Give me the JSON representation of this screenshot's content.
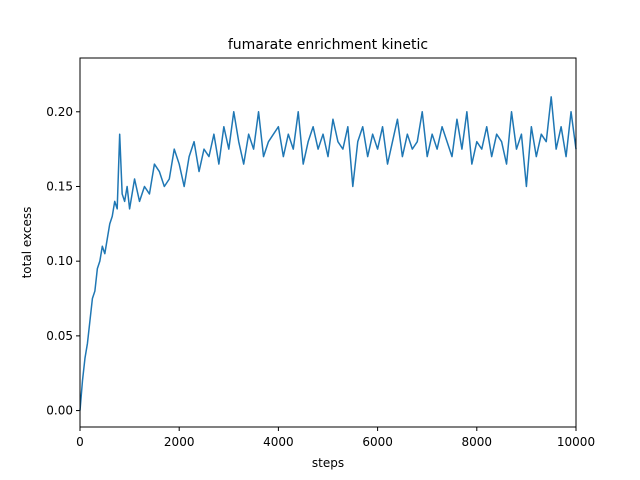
{
  "chart_data": {
    "type": "line",
    "title": "fumarate enrichment kinetic",
    "xlabel": "steps",
    "ylabel": "total excess",
    "xlim": [
      0,
      10000
    ],
    "ylim": [
      -0.011,
      0.236
    ],
    "x_ticks": [
      0,
      2000,
      4000,
      6000,
      8000,
      10000
    ],
    "x_tick_labels": [
      "0",
      "2000",
      "4000",
      "6000",
      "8000",
      "10000"
    ],
    "y_ticks": [
      0.0,
      0.05,
      0.1,
      0.15,
      0.2
    ],
    "y_tick_labels": [
      "0.00",
      "0.05",
      "0.10",
      "0.15",
      "0.20"
    ],
    "grid": false,
    "series": [
      {
        "name": "total excess",
        "color": "#1f77b4",
        "x": [
          0,
          50,
          100,
          150,
          200,
          250,
          300,
          350,
          400,
          450,
          500,
          550,
          600,
          650,
          700,
          750,
          800,
          850,
          900,
          950,
          1000,
          1100,
          1200,
          1300,
          1400,
          1500,
          1600,
          1700,
          1800,
          1900,
          2000,
          2100,
          2200,
          2300,
          2400,
          2500,
          2600,
          2700,
          2800,
          2900,
          3000,
          3100,
          3200,
          3300,
          3400,
          3500,
          3600,
          3700,
          3800,
          3900,
          4000,
          4100,
          4200,
          4300,
          4400,
          4500,
          4600,
          4700,
          4800,
          4900,
          5000,
          5100,
          5200,
          5300,
          5400,
          5500,
          5600,
          5700,
          5800,
          5900,
          6000,
          6100,
          6200,
          6300,
          6400,
          6500,
          6600,
          6700,
          6800,
          6900,
          7000,
          7100,
          7200,
          7300,
          7400,
          7500,
          7600,
          7700,
          7800,
          7900,
          8000,
          8100,
          8200,
          8300,
          8400,
          8500,
          8600,
          8700,
          8800,
          8900,
          9000,
          9100,
          9200,
          9300,
          9400,
          9500,
          9600,
          9700,
          9800,
          9900,
          10000
        ],
        "values": [
          0.0,
          0.02,
          0.035,
          0.045,
          0.06,
          0.075,
          0.08,
          0.095,
          0.1,
          0.11,
          0.105,
          0.115,
          0.125,
          0.13,
          0.14,
          0.135,
          0.185,
          0.145,
          0.14,
          0.15,
          0.135,
          0.155,
          0.14,
          0.15,
          0.145,
          0.165,
          0.16,
          0.15,
          0.155,
          0.175,
          0.165,
          0.15,
          0.17,
          0.18,
          0.16,
          0.175,
          0.17,
          0.185,
          0.165,
          0.19,
          0.175,
          0.2,
          0.18,
          0.165,
          0.185,
          0.175,
          0.2,
          0.17,
          0.18,
          0.185,
          0.19,
          0.17,
          0.185,
          0.175,
          0.2,
          0.165,
          0.18,
          0.19,
          0.175,
          0.185,
          0.17,
          0.195,
          0.18,
          0.175,
          0.19,
          0.15,
          0.18,
          0.19,
          0.17,
          0.185,
          0.175,
          0.19,
          0.165,
          0.18,
          0.195,
          0.17,
          0.185,
          0.175,
          0.18,
          0.2,
          0.17,
          0.185,
          0.175,
          0.19,
          0.18,
          0.17,
          0.195,
          0.175,
          0.2,
          0.165,
          0.18,
          0.175,
          0.19,
          0.17,
          0.185,
          0.18,
          0.165,
          0.2,
          0.175,
          0.185,
          0.15,
          0.19,
          0.17,
          0.185,
          0.18,
          0.21,
          0.175,
          0.19,
          0.17,
          0.2,
          0.175
        ]
      }
    ]
  }
}
